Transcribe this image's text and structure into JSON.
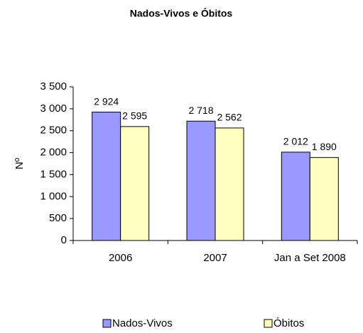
{
  "chart_data": {
    "type": "bar",
    "title": "Nados-Vivos e Óbitos",
    "ylabel": "Nº",
    "categories": [
      "2006",
      "2007",
      "Jan a Set 2008"
    ],
    "series": [
      {
        "name": "Nados-Vivos",
        "color": "#9999ff",
        "values": [
          2924,
          2718,
          2012
        ],
        "value_labels": [
          "2 924",
          "2 718",
          "2 012"
        ]
      },
      {
        "name": "Óbitos",
        "color": "#ffffc0",
        "values": [
          2595,
          2562,
          1890
        ],
        "value_labels": [
          "2 595",
          "2 562",
          "1 890"
        ]
      }
    ],
    "ylim": [
      0,
      3500
    ],
    "yticks": [
      0,
      500,
      {
        "value": 1000,
        "label": "1 000"
      },
      {
        "value": 1500,
        "label": "1 500"
      },
      {
        "value": 2000,
        "label": "2 000"
      },
      {
        "value": 2500,
        "label": "2 500"
      },
      {
        "value": 3000,
        "label": "3 000"
      },
      {
        "value": 3500,
        "label": "3 500"
      }
    ],
    "grid": false,
    "legend": "bottom"
  }
}
